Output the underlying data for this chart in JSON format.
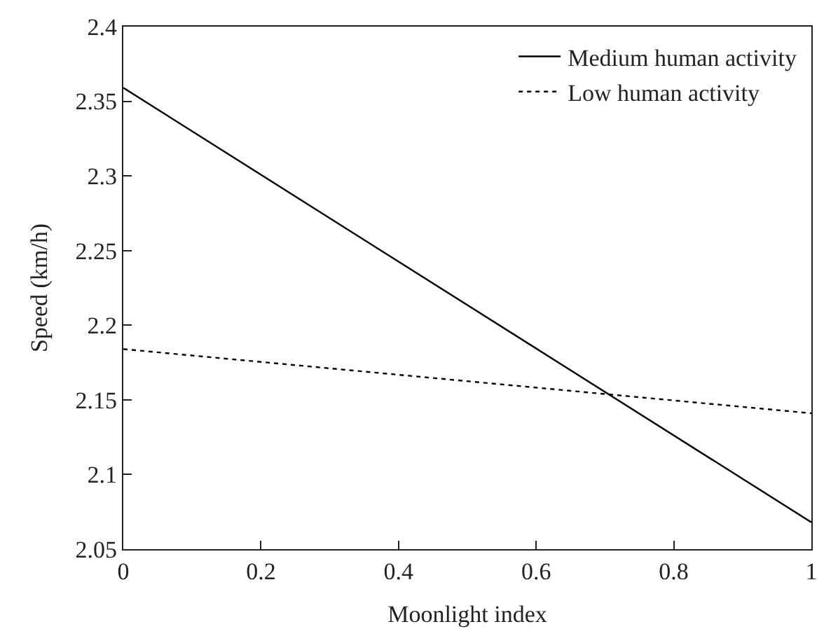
{
  "chart_data": {
    "type": "line",
    "xlabel": "Moonlight index",
    "ylabel": "Speed (km/h)",
    "x": [
      0,
      1
    ],
    "series": [
      {
        "name": "Medium human activity",
        "color": "#000000",
        "values": [
          2.359,
          2.068
        ],
        "line_style": "solid"
      },
      {
        "name": "Low human activity",
        "color": "#000000",
        "values": [
          2.184,
          2.141
        ],
        "line_style": "dotted"
      }
    ],
    "xlim": [
      0,
      1
    ],
    "xticks": [
      0,
      0.2,
      0.4,
      0.6,
      0.8,
      1
    ],
    "ylim": [
      2.05,
      2.4
    ],
    "yticks": [
      2.05,
      2.1,
      2.15,
      2.2,
      2.25,
      2.3,
      2.35,
      2.4
    ],
    "legend": "top right",
    "marker": "none"
  }
}
